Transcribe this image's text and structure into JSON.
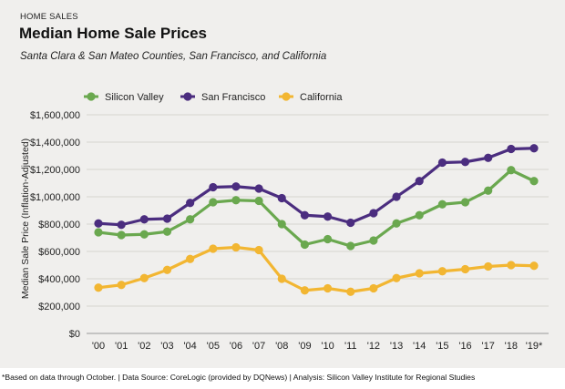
{
  "header": {
    "eyebrow": "HOME SALES",
    "title": "Median Home Sale Prices",
    "subtitle": "Santa Clara & San Mateo Counties, San Francisco, and California"
  },
  "footnote": "*Based on data through October.  |  Data Source: CoreLogic (provided by DQNews)  |  Analysis: Silicon Valley Institute for Regional Studies",
  "chart_data": {
    "type": "line",
    "title": "Median Home Sale Prices",
    "subtitle": "Santa Clara & San Mateo Counties, San Francisco, and California",
    "xlabel": "",
    "ylabel": "Median Sale Price (Inflation-Adjusted)",
    "categories": [
      "'00",
      "'01",
      "'02",
      "'03",
      "'04",
      "'05",
      "'06",
      "'07",
      "'08",
      "'09",
      "'10",
      "'11",
      "'12",
      "'13",
      "'14",
      "'15",
      "'16",
      "'17",
      "'18",
      "'19*"
    ],
    "ylim": [
      0,
      1600000
    ],
    "yticks": [
      0,
      200000,
      400000,
      600000,
      800000,
      1000000,
      1200000,
      1400000,
      1600000
    ],
    "ytick_labels": [
      "$0",
      "$200,000",
      "$400,000",
      "$600,000",
      "$800,000",
      "$1,000,000",
      "$1,200,000",
      "$1,400,000",
      "$1,600,000"
    ],
    "grid": true,
    "legend_position": "top-left",
    "series": [
      {
        "name": "Silicon Valley",
        "color": "#6aa84f",
        "values": [
          740000,
          720000,
          725000,
          745000,
          835000,
          960000,
          975000,
          970000,
          800000,
          650000,
          690000,
          640000,
          680000,
          805000,
          865000,
          945000,
          960000,
          1045000,
          1195000,
          1115000
        ]
      },
      {
        "name": "San Francisco",
        "color": "#4b2d7f",
        "values": [
          805000,
          795000,
          835000,
          840000,
          955000,
          1070000,
          1075000,
          1060000,
          990000,
          865000,
          855000,
          810000,
          880000,
          1000000,
          1115000,
          1250000,
          1255000,
          1285000,
          1350000,
          1355000
        ]
      },
      {
        "name": "California",
        "color": "#f2b632",
        "values": [
          335000,
          355000,
          405000,
          465000,
          545000,
          620000,
          630000,
          610000,
          400000,
          315000,
          330000,
          305000,
          330000,
          405000,
          440000,
          455000,
          470000,
          490000,
          500000,
          495000
        ]
      }
    ]
  }
}
